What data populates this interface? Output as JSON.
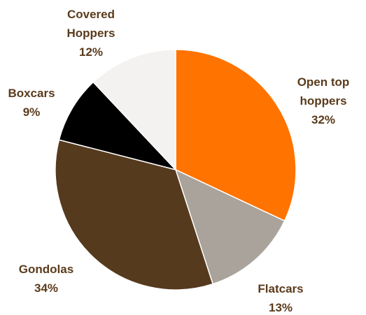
{
  "chart_data": {
    "type": "pie",
    "title": "",
    "start_angle_deg": 0,
    "direction": "clockwise",
    "slices": [
      {
        "label_lines": [
          "Open top",
          "hoppers"
        ],
        "value_label": "32%",
        "value": 32,
        "color": "#ff7300"
      },
      {
        "label_lines": [
          "Flatcars"
        ],
        "value_label": "13%",
        "value": 13,
        "color": "#aaa39b"
      },
      {
        "label_lines": [
          "Gondolas"
        ],
        "value_label": "34%",
        "value": 34,
        "color": "#553a1e"
      },
      {
        "label_lines": [
          "Boxcars"
        ],
        "value_label": "9%",
        "value": 9,
        "color": "#000000"
      },
      {
        "label_lines": [
          "Covered",
          "Hoppers"
        ],
        "value_label": "12%",
        "value": 12,
        "color": "#f3f2f0"
      }
    ]
  }
}
